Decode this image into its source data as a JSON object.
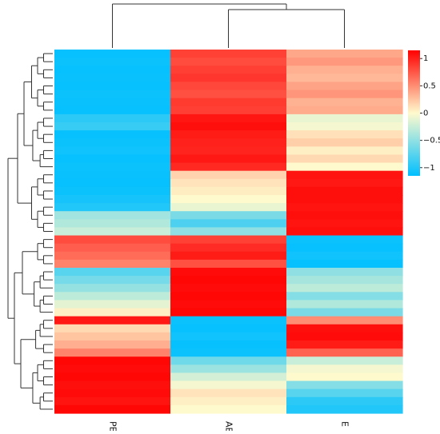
{
  "chart_data": {
    "type": "heatmap",
    "title": "",
    "columns": [
      "PE",
      "AE",
      "E"
    ],
    "row_count": 45,
    "values": [
      [
        -1.12,
        0.85,
        0.38
      ],
      [
        -1.1,
        0.8,
        0.45
      ],
      [
        -1.12,
        0.86,
        0.34
      ],
      [
        -1.11,
        0.9,
        0.3
      ],
      [
        -1.12,
        0.82,
        0.4
      ],
      [
        -1.1,
        0.78,
        0.46
      ],
      [
        -1.11,
        0.88,
        0.33
      ],
      [
        -1.12,
        0.86,
        0.36
      ],
      [
        -0.95,
        1.05,
        -0.1
      ],
      [
        -0.9,
        1.08,
        -0.05
      ],
      [
        -1.12,
        1.02,
        0.12
      ],
      [
        -1.1,
        1.0,
        0.2
      ],
      [
        -1.08,
        0.98,
        0.05
      ],
      [
        -1.12,
        1.04,
        0.15
      ],
      [
        -1.1,
        0.96,
        0.0
      ],
      [
        -1.11,
        0.18,
        1.06
      ],
      [
        -1.12,
        0.1,
        1.04
      ],
      [
        -1.1,
        0.06,
        1.08
      ],
      [
        -1.05,
        0.0,
        1.08
      ],
      [
        -1.0,
        -0.1,
        1.06
      ],
      [
        -0.42,
        -0.6,
        1.08
      ],
      [
        -0.35,
        -0.8,
        1.06
      ],
      [
        -0.25,
        -0.5,
        1.08
      ],
      [
        0.8,
        0.85,
        -1.1
      ],
      [
        0.72,
        0.95,
        -1.12
      ],
      [
        0.65,
        1.02,
        -1.08
      ],
      [
        0.55,
        0.78,
        -1.12
      ],
      [
        -0.75,
        1.1,
        -0.5
      ],
      [
        -0.62,
        1.12,
        -0.4
      ],
      [
        -0.48,
        1.1,
        -0.3
      ],
      [
        -0.3,
        1.12,
        -0.55
      ],
      [
        -0.12,
        1.1,
        -0.35
      ],
      [
        0.05,
        1.12,
        -0.6
      ],
      [
        1.04,
        -1.1,
        0.5
      ],
      [
        0.15,
        -1.12,
        1.08
      ],
      [
        0.25,
        -1.08,
        1.1
      ],
      [
        0.35,
        -1.12,
        1.02
      ],
      [
        0.55,
        -1.1,
        0.7
      ],
      [
        1.12,
        -0.65,
        -0.25
      ],
      [
        1.1,
        -0.45,
        -0.05
      ],
      [
        1.12,
        -0.2,
        0.0
      ],
      [
        1.08,
        -0.05,
        -0.55
      ],
      [
        1.1,
        0.1,
        -0.75
      ],
      [
        1.06,
        0.05,
        -0.95
      ],
      [
        1.12,
        0.0,
        -1.0
      ]
    ],
    "color_scale": {
      "min": -1.15,
      "max": 1.15,
      "colors": [
        "#00bfff",
        "#fffacd",
        "#ff0000"
      ],
      "ticks": [
        1,
        0.5,
        0,
        -0.5,
        -1
      ],
      "tick_labels": [
        "1",
        "0.5",
        "0",
        "−0.5",
        "−1"
      ]
    },
    "column_dendrogram": true,
    "row_dendrogram": true,
    "legend_position": "right"
  }
}
